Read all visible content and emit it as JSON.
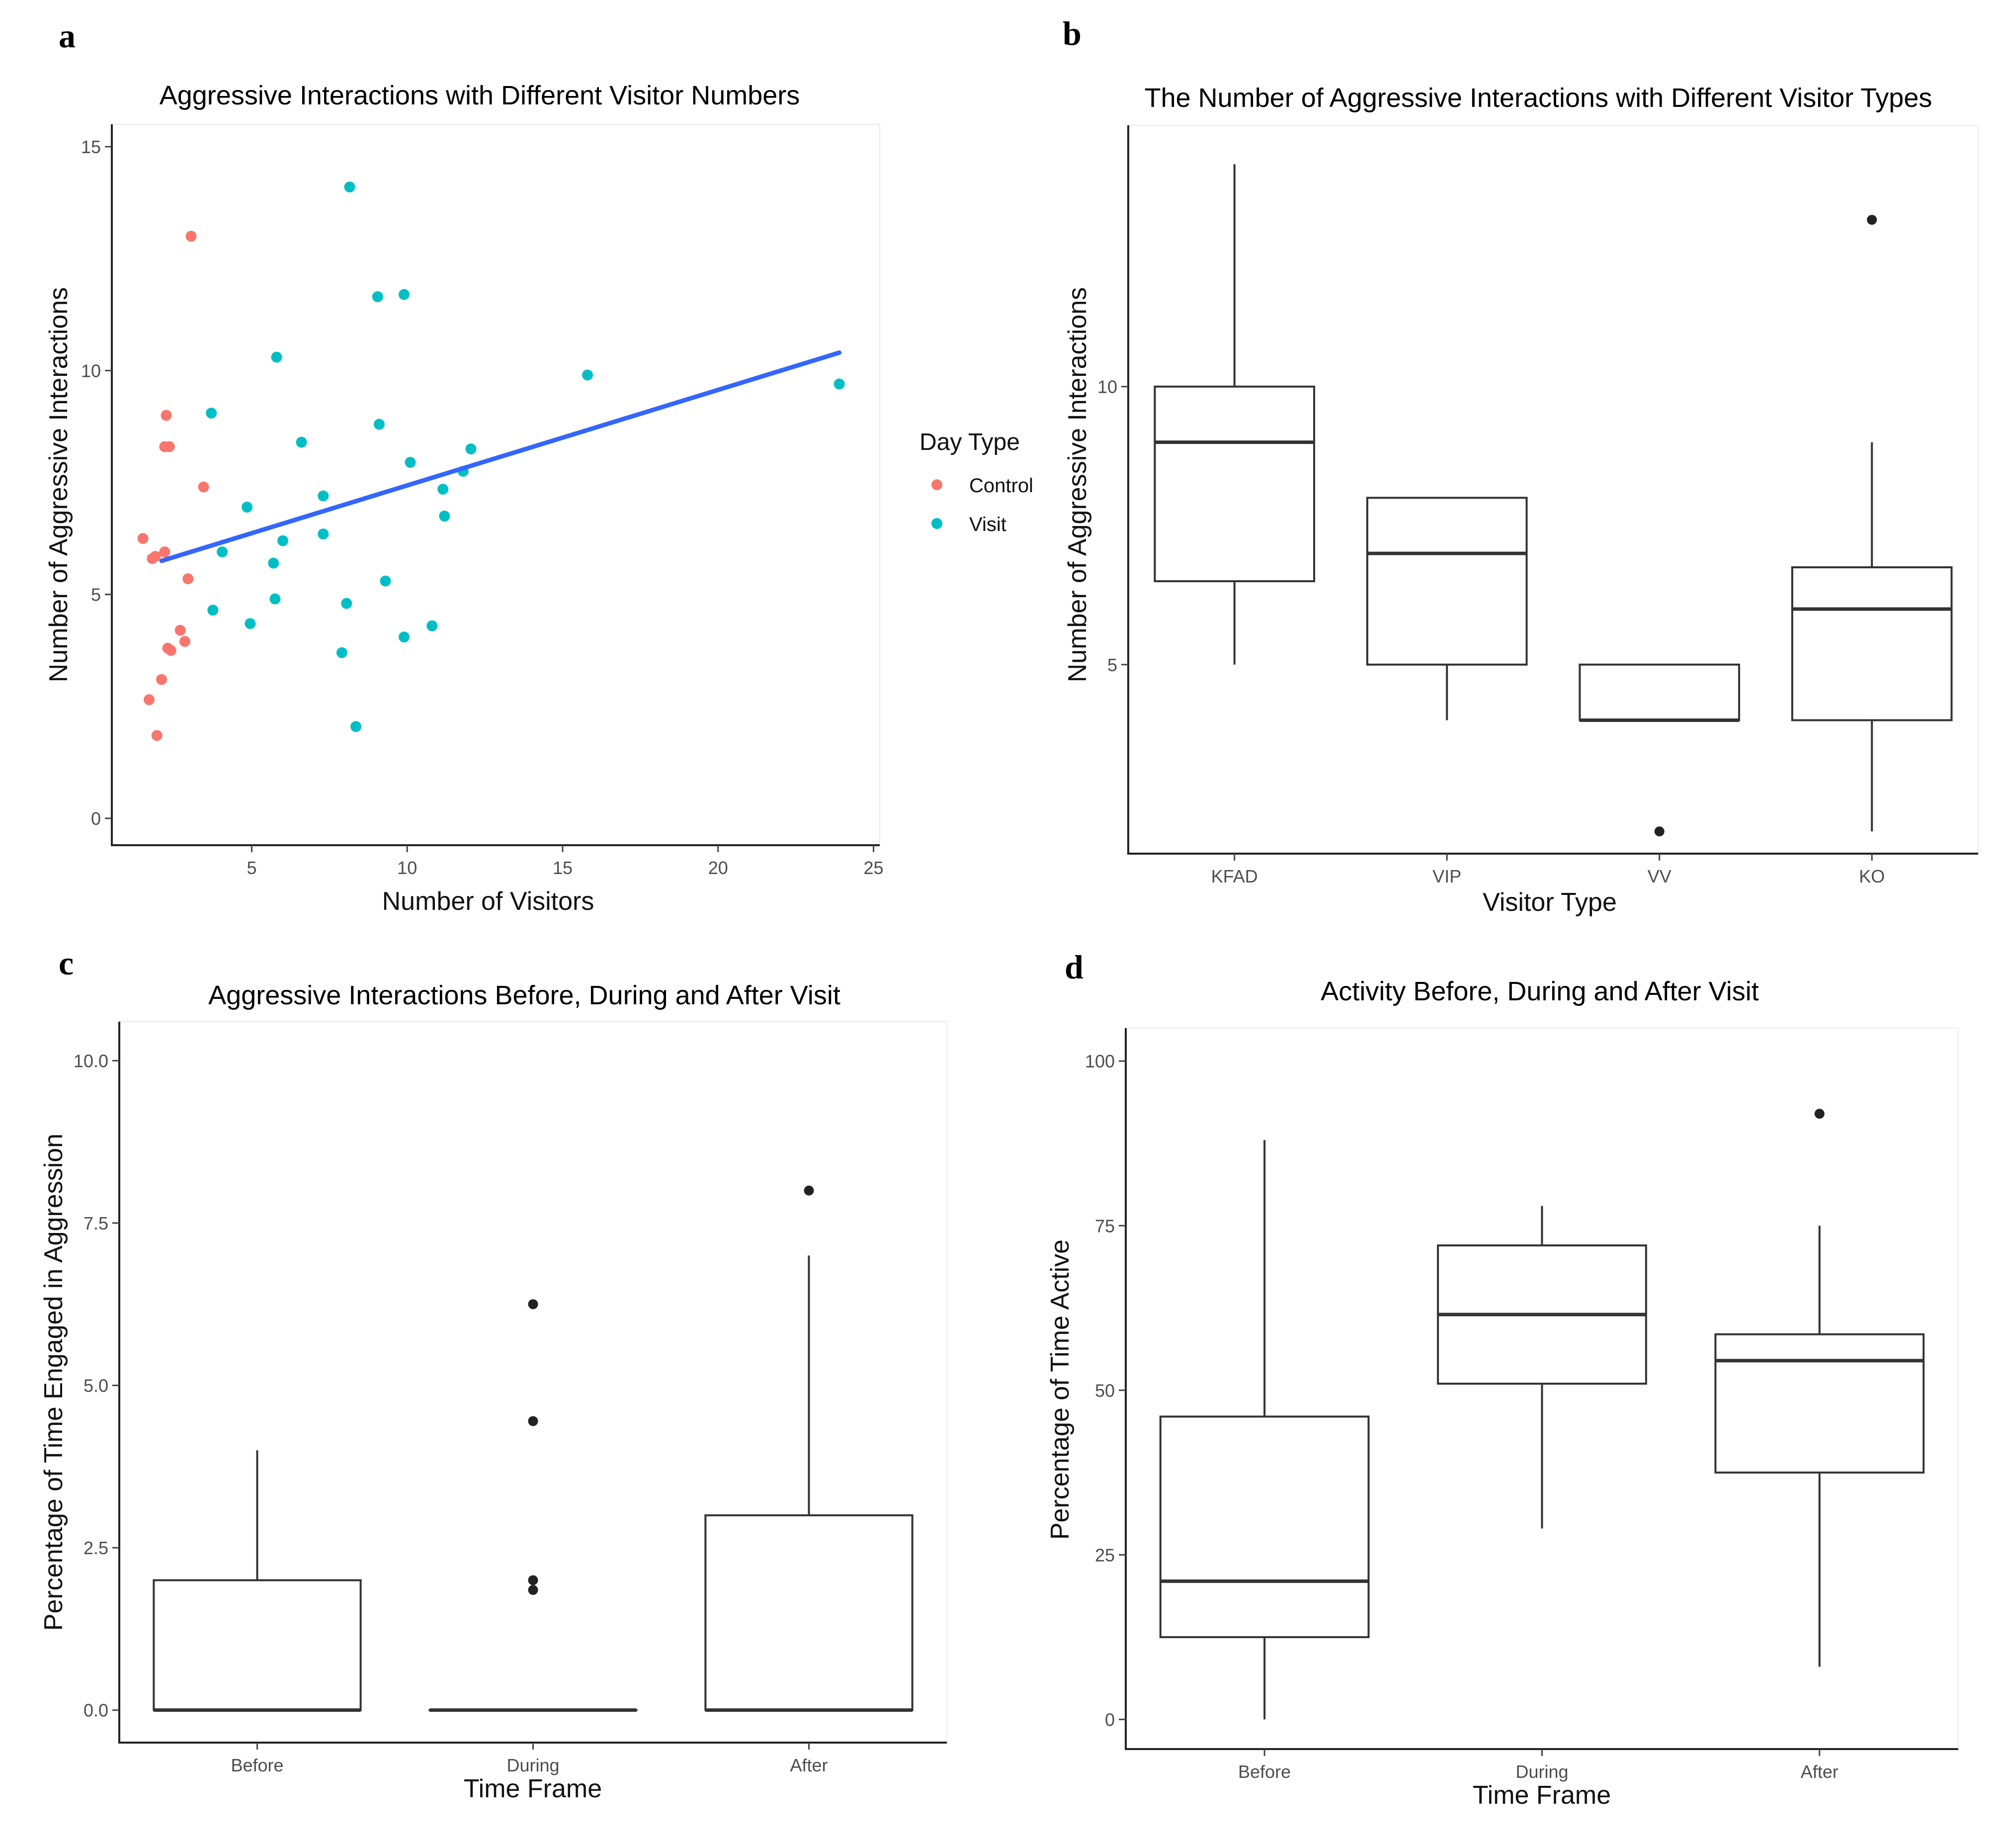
{
  "panels": {
    "a": {
      "letter": "a"
    },
    "b": {
      "letter": "b"
    },
    "c": {
      "letter": "c"
    },
    "d": {
      "letter": "d"
    }
  },
  "colors": {
    "control": "#F8766D",
    "visit": "#00BFC4",
    "trend": "#3366FF",
    "box": "#333333"
  },
  "chart_data": [
    {
      "id": "a",
      "type": "scatter",
      "title": "Aggressive Interactions with Different Visitor Numbers",
      "xlabel": "Number of Visitors",
      "ylabel": "Number of Aggressive Interactions",
      "xlim": [
        0.5,
        25.2
      ],
      "ylim": [
        -0.6,
        15.5
      ],
      "xticks": [
        5,
        10,
        15,
        20,
        25
      ],
      "yticks": [
        0,
        5,
        10,
        15
      ],
      "legend": {
        "title": "Day Type",
        "position": "right"
      },
      "series": [
        {
          "name": "Control",
          "color": "#F8766D",
          "points": [
            [
              1.5,
              6.25
            ],
            [
              1.7,
              2.65
            ],
            [
              1.8,
              5.8
            ],
            [
              1.9,
              5.85
            ],
            [
              1.95,
              1.85
            ],
            [
              2.1,
              3.1
            ],
            [
              2.2,
              8.3
            ],
            [
              2.2,
              5.95
            ],
            [
              2.25,
              9.0
            ],
            [
              2.3,
              3.8
            ],
            [
              2.35,
              8.3
            ],
            [
              2.4,
              3.75
            ],
            [
              2.7,
              4.2
            ],
            [
              2.85,
              3.95
            ],
            [
              2.95,
              5.35
            ],
            [
              3.05,
              13.0
            ],
            [
              3.45,
              7.4
            ]
          ]
        },
        {
          "name": "Visit",
          "color": "#00BFC4",
          "points": [
            [
              3.7,
              9.05
            ],
            [
              3.75,
              4.65
            ],
            [
              4.05,
              5.95
            ],
            [
              4.85,
              6.95
            ],
            [
              4.95,
              4.35
            ],
            [
              5.7,
              5.7
            ],
            [
              5.75,
              4.9
            ],
            [
              5.8,
              10.3
            ],
            [
              6.0,
              6.2
            ],
            [
              6.6,
              8.4
            ],
            [
              7.3,
              7.2
            ],
            [
              7.3,
              6.35
            ],
            [
              7.9,
              3.7
            ],
            [
              8.05,
              4.8
            ],
            [
              8.15,
              14.1
            ],
            [
              8.35,
              2.05
            ],
            [
              9.05,
              11.65
            ],
            [
              9.1,
              8.8
            ],
            [
              9.3,
              5.3
            ],
            [
              9.9,
              11.7
            ],
            [
              9.9,
              4.05
            ],
            [
              10.1,
              7.95
            ],
            [
              10.8,
              4.3
            ],
            [
              11.15,
              7.35
            ],
            [
              11.2,
              6.75
            ],
            [
              11.8,
              7.75
            ],
            [
              12.05,
              8.25
            ],
            [
              15.8,
              9.9
            ],
            [
              23.9,
              9.7
            ]
          ]
        }
      ],
      "trend": {
        "x": [
          2.1,
          23.9
        ],
        "y": [
          5.75,
          10.4
        ],
        "color": "#3366FF"
      }
    },
    {
      "id": "b",
      "type": "box",
      "title": "The Number of Aggressive Interactions with Different Visitor Types",
      "xlabel": "Visitor Type",
      "ylabel": "Number of Aggressive Interactions",
      "ylim": [
        1.6,
        14.7
      ],
      "yticks": [
        5,
        10
      ],
      "categories": [
        "KFAD",
        "VIP",
        "VV",
        "KO"
      ],
      "boxes": [
        {
          "category": "KFAD",
          "min": 5,
          "q1": 6.5,
          "median": 9,
          "q3": 10,
          "max": 14,
          "outliers": []
        },
        {
          "category": "VIP",
          "min": 4,
          "q1": 5,
          "median": 7,
          "q3": 8,
          "max": 8,
          "outliers": []
        },
        {
          "category": "VV",
          "min": 4,
          "q1": 4,
          "median": 4,
          "q3": 5,
          "max": 5,
          "outliers": [
            2
          ]
        },
        {
          "category": "KO",
          "min": 2,
          "q1": 4,
          "median": 6,
          "q3": 6.75,
          "max": 9,
          "outliers": [
            13
          ]
        }
      ]
    },
    {
      "id": "c",
      "type": "box",
      "title": "Aggressive Interactions Before, During and After Visit",
      "xlabel": "Time Frame",
      "ylabel": "Percentage of Time Engaged in Aggression",
      "ylim": [
        -0.5,
        10.6
      ],
      "yticks": [
        0.0,
        2.5,
        5.0,
        7.5,
        10.0
      ],
      "ytick_labels": [
        "0.0",
        "2.5",
        "5.0",
        "7.5",
        "10.0"
      ],
      "categories": [
        "Before",
        "During",
        "After"
      ],
      "boxes": [
        {
          "category": "Before",
          "min": 0,
          "q1": 0,
          "median": 0,
          "q3": 2,
          "max": 4,
          "outliers": []
        },
        {
          "category": "During",
          "min": 0,
          "q1": 0,
          "median": 0,
          "q3": 0,
          "max": 0,
          "outliers": [
            1.85,
            2.0,
            4.45,
            6.25
          ]
        },
        {
          "category": "After",
          "min": 0,
          "q1": 0,
          "median": 0,
          "q3": 3,
          "max": 7,
          "outliers": [
            8.0
          ]
        }
      ]
    },
    {
      "id": "d",
      "type": "box",
      "title": "Activity Before, During and After Visit",
      "xlabel": "Time Frame",
      "ylabel": "Percentage of Time Active",
      "ylim": [
        -4.5,
        105
      ],
      "yticks": [
        0,
        25,
        50,
        75,
        100
      ],
      "categories": [
        "Before",
        "During",
        "After"
      ],
      "boxes": [
        {
          "category": "Before",
          "min": 0,
          "q1": 12.5,
          "median": 21,
          "q3": 46,
          "max": 88,
          "outliers": []
        },
        {
          "category": "During",
          "min": 29,
          "q1": 51,
          "median": 61.5,
          "q3": 72,
          "max": 78,
          "outliers": []
        },
        {
          "category": "After",
          "min": 8,
          "q1": 37.5,
          "median": 54.5,
          "q3": 58.5,
          "max": 75,
          "outliers": [
            92
          ]
        }
      ]
    }
  ]
}
